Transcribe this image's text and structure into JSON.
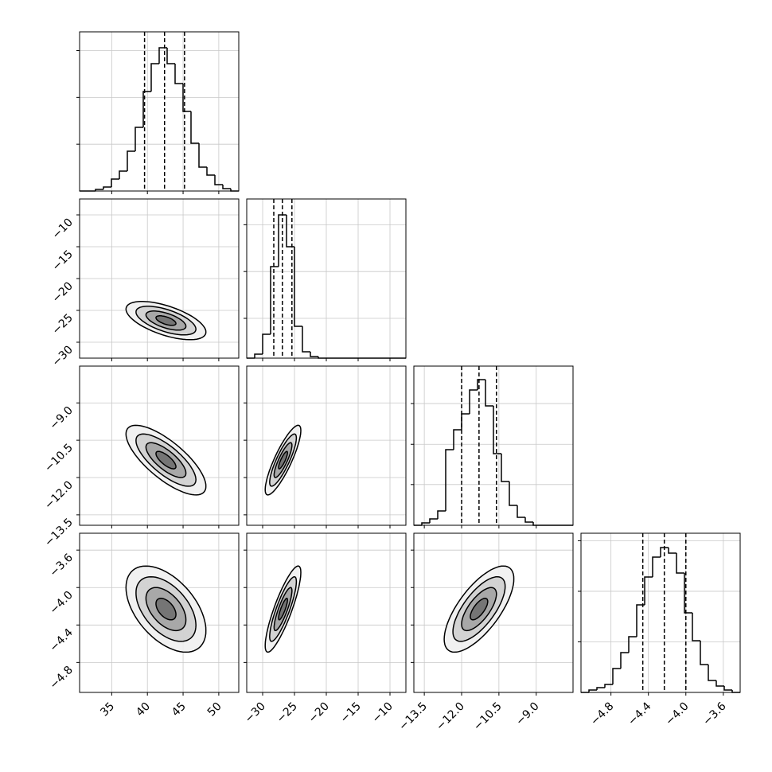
{
  "chart_data": {
    "type": "corner",
    "grid": true,
    "color": "#000000",
    "levels": [
      0.5,
      1,
      1.5,
      2
    ],
    "params": [
      {
        "lim": [
          30.5,
          52.8
        ],
        "ticks": [
          35,
          40,
          45,
          50
        ],
        "bins": [
          30.5,
          31.615,
          32.73,
          33.845,
          34.96,
          36.075,
          37.19,
          38.305,
          39.42,
          40.535,
          41.65,
          42.765,
          43.88,
          44.995,
          46.11,
          47.225,
          48.34,
          49.455,
          50.57,
          51.685,
          52.8
        ],
        "counts": [
          0,
          0,
          34,
          85,
          255,
          425,
          850,
          1360,
          2125,
          2720,
          3060,
          2720,
          2295,
          1700,
          1020,
          510,
          340,
          136,
          51,
          0
        ],
        "count_lim": [
          0,
          3400
        ],
        "count_ticks": [
          1000,
          2000,
          3000
        ],
        "quantiles": [
          39.6,
          42.4,
          45.2
        ],
        "pairs": []
      },
      {
        "lim": [
          -32.5,
          -7.5
        ],
        "ticks": [
          {
            "value": -30,
            "label": "−30"
          },
          {
            "value": -25,
            "label": "−25"
          },
          {
            "value": -20,
            "label": "−20"
          },
          {
            "value": -15,
            "label": "−15"
          },
          {
            "value": -10,
            "label": "−10"
          }
        ],
        "bins": [
          -32.5,
          -31.25,
          -30,
          -28.75,
          -27.5,
          -26.25,
          -25,
          -23.75,
          -22.5,
          -21.25,
          -20,
          -18.75,
          -17.5,
          -16.25,
          -15,
          -13.75,
          -12.5,
          -11.25,
          -10,
          -8.75,
          -7.5
        ],
        "counts": [
          0,
          85,
          510,
          1955,
          3060,
          2380,
          680,
          136,
          34,
          0,
          0,
          0,
          0,
          0,
          0,
          0,
          0,
          0,
          0,
          0
        ],
        "count_lim": [
          0,
          3400
        ],
        "count_ticks": [
          850,
          1850,
          2850
        ],
        "quantiles": [
          -28.25,
          -26.9,
          -25.4
        ],
        "pairs": [
          {
            "mean": [
              42.6,
              -26.6
            ],
            "sd": [
              2.8,
              1.5
            ],
            "corr": -0.6
          }
        ]
      },
      {
        "lim": [
          -13.92,
          -7.52
        ],
        "ticks": [
          {
            "value": -13.5,
            "label": "−13.5"
          },
          {
            "value": -12,
            "label": "−12.0"
          },
          {
            "value": -10.5,
            "label": "−10.5"
          },
          {
            "value": -9,
            "label": "−9.0"
          }
        ],
        "bins": [
          -13.92,
          -13.6,
          -13.28,
          -12.96,
          -12.64,
          -12.32,
          -12.0,
          -11.68,
          -11.36,
          -11.04,
          -10.72,
          -10.4,
          -10.08,
          -9.76,
          -9.44,
          -9.12,
          -8.8,
          -8.48,
          -8.16,
          -7.84,
          -7.52
        ],
        "counts": [
          0,
          51,
          136,
          306,
          1615,
          2040,
          2380,
          2890,
          3111,
          2550,
          1530,
          935,
          425,
          170,
          68,
          0,
          0,
          0,
          0,
          0
        ],
        "count_lim": [
          0,
          3400
        ],
        "count_ticks": [
          870,
          1730,
          2600
        ],
        "quantiles": [
          -12.0,
          -11.3,
          -10.6
        ],
        "pairs": [
          {
            "mean": [
              42.6,
              -11.3
            ],
            "sd": [
              2.8,
              0.7
            ],
            "corr": -0.75
          },
          {
            "mean": [
              -26.8,
              -11.3
            ],
            "sd": [
              1.4,
              0.7
            ],
            "corr": 0.85
          }
        ]
      },
      {
        "lim": [
          -5.12,
          -3.42
        ],
        "ticks": [
          {
            "value": -4.8,
            "label": "−4.8"
          },
          {
            "value": -4.4,
            "label": "−4.4"
          },
          {
            "value": -4.0,
            "label": "−4.0"
          },
          {
            "value": -3.6,
            "label": "−3.6"
          }
        ],
        "bins": [
          -5.12,
          -5.035,
          -4.95,
          -4.865,
          -4.78,
          -4.695,
          -4.61,
          -4.525,
          -4.44,
          -4.355,
          -4.27,
          -4.185,
          -4.1,
          -4.015,
          -3.93,
          -3.845,
          -3.76,
          -3.675,
          -3.59,
          -3.505,
          -3.42
        ],
        "counts": [
          0,
          51,
          102,
          170,
          510,
          850,
          1190,
          1870,
          2465,
          2890,
          3094,
          2975,
          2550,
          1700,
          1105,
          595,
          255,
          136,
          51,
          0
        ],
        "count_lim": [
          0,
          3400
        ],
        "count_ticks": [
          1080,
          2160,
          3240
        ],
        "quantiles": [
          -4.46,
          -4.23,
          -4.0
        ],
        "pairs": [
          {
            "mean": [
              42.6,
              -4.23
            ],
            "sd": [
              2.8,
              0.23
            ],
            "corr": -0.5
          },
          {
            "mean": [
              -26.8,
              -4.23
            ],
            "sd": [
              1.4,
              0.23
            ],
            "corr": 0.85
          },
          {
            "mean": [
              -11.3,
              -4.23
            ],
            "sd": [
              0.7,
              0.23
            ],
            "corr": 0.7
          }
        ]
      }
    ]
  }
}
